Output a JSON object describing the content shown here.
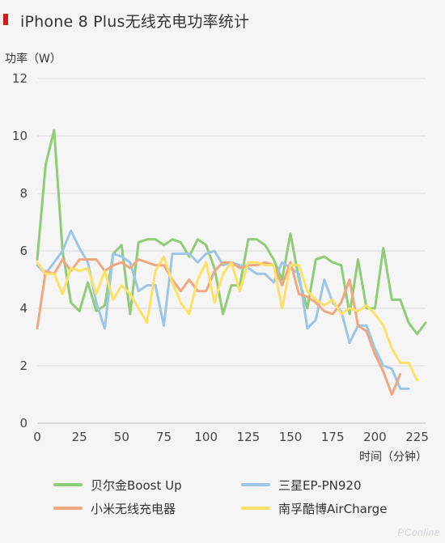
{
  "header": {
    "title": "iPhone 8 Plus无线充电功率统计"
  },
  "watermark": {
    "text": "PConline"
  },
  "colors": {
    "green": "#8fcc76",
    "blue": "#9bc6e8",
    "orange": "#f0a67f",
    "yellow": "#ffe066",
    "grid": "#d9d9d9",
    "axis_text": "#444444",
    "accent_red": "#d11b1b"
  },
  "chart_data": {
    "type": "line",
    "ylabel": "功率（W）",
    "xlabel": "时间（分钟）",
    "xlim": [
      0,
      230
    ],
    "ylim": [
      0,
      12
    ],
    "xticks": [
      0,
      25,
      50,
      75,
      100,
      125,
      150,
      175,
      200,
      225
    ],
    "yticks": [
      0,
      2,
      4,
      6,
      8,
      10,
      12
    ],
    "grid": true,
    "legend_position": "bottom",
    "series": [
      {
        "name": "贝尔金Boost Up",
        "color": "#8fcc76",
        "x": [
          0,
          5,
          10,
          15,
          20,
          25,
          30,
          35,
          40,
          45,
          50,
          55,
          60,
          65,
          70,
          75,
          80,
          85,
          90,
          95,
          100,
          105,
          110,
          115,
          120,
          125,
          130,
          135,
          140,
          145,
          150,
          155,
          160,
          165,
          170,
          175,
          180,
          185,
          190,
          195,
          200,
          205,
          210,
          215,
          220,
          225,
          230
        ],
        "y": [
          5.7,
          9.0,
          10.2,
          6.0,
          4.2,
          3.9,
          4.9,
          3.9,
          4.1,
          5.9,
          6.2,
          3.8,
          6.3,
          6.4,
          6.4,
          6.2,
          6.4,
          6.3,
          5.8,
          6.4,
          6.2,
          5.4,
          3.8,
          4.8,
          4.8,
          6.4,
          6.4,
          6.2,
          5.7,
          5.0,
          6.6,
          5.0,
          4.0,
          5.7,
          5.8,
          5.6,
          5.5,
          3.8,
          5.7,
          4.0,
          4.0,
          6.1,
          4.3,
          4.3,
          3.5,
          3.1,
          3.5
        ]
      },
      {
        "name": "三星EP-PN920",
        "color": "#9bc6e8",
        "x": [
          0,
          5,
          10,
          15,
          20,
          25,
          30,
          35,
          40,
          45,
          50,
          55,
          60,
          65,
          70,
          75,
          80,
          85,
          90,
          95,
          100,
          105,
          110,
          115,
          120,
          125,
          130,
          135,
          140,
          145,
          150,
          155,
          160,
          165,
          170,
          175,
          180,
          185,
          190,
          195,
          200,
          205,
          210,
          215,
          220
        ],
        "y": [
          5.5,
          5.2,
          5.6,
          6.0,
          6.7,
          6.1,
          5.6,
          4.2,
          3.3,
          5.9,
          5.8,
          5.6,
          4.6,
          4.8,
          4.8,
          3.4,
          5.9,
          5.9,
          5.9,
          5.6,
          5.9,
          6.0,
          5.5,
          5.6,
          5.5,
          5.4,
          5.2,
          5.2,
          4.9,
          5.6,
          5.4,
          5.2,
          3.3,
          3.6,
          5.0,
          4.2,
          3.9,
          2.8,
          3.4,
          3.4,
          2.6,
          2.0,
          1.9,
          1.2,
          1.2
        ]
      },
      {
        "name": "小米无线充电器",
        "color": "#f0a67f",
        "x": [
          0,
          5,
          10,
          15,
          20,
          25,
          30,
          35,
          40,
          45,
          50,
          55,
          60,
          65,
          70,
          75,
          80,
          85,
          90,
          95,
          100,
          105,
          110,
          115,
          120,
          125,
          130,
          135,
          140,
          145,
          150,
          155,
          160,
          165,
          170,
          175,
          180,
          185,
          190,
          195,
          200,
          205,
          210,
          215
        ],
        "y": [
          3.3,
          5.3,
          5.2,
          5.7,
          5.3,
          5.7,
          5.7,
          5.7,
          5.3,
          5.5,
          5.6,
          5.4,
          5.7,
          5.6,
          5.5,
          5.5,
          5.0,
          4.6,
          5.0,
          4.6,
          4.6,
          5.3,
          5.6,
          5.6,
          5.4,
          5.5,
          5.5,
          5.6,
          5.5,
          4.8,
          5.6,
          4.5,
          4.4,
          4.2,
          3.9,
          3.8,
          4.2,
          5.0,
          3.4,
          3.2,
          2.4,
          1.8,
          1.0,
          1.7
        ]
      },
      {
        "name": "南孚酷博AirCharge",
        "color": "#ffe066",
        "x": [
          0,
          5,
          10,
          15,
          20,
          25,
          30,
          35,
          40,
          45,
          50,
          55,
          60,
          65,
          70,
          75,
          80,
          85,
          90,
          95,
          100,
          105,
          110,
          115,
          120,
          125,
          130,
          135,
          140,
          145,
          150,
          155,
          160,
          165,
          170,
          175,
          180,
          185,
          190,
          195,
          200,
          205,
          210,
          215,
          220,
          225
        ],
        "y": [
          5.6,
          5.2,
          5.2,
          4.5,
          5.4,
          5.3,
          5.4,
          4.5,
          5.3,
          4.3,
          4.8,
          4.5,
          4.0,
          3.5,
          5.3,
          5.8,
          4.9,
          4.2,
          3.8,
          5.0,
          5.6,
          4.2,
          5.2,
          5.6,
          4.6,
          5.6,
          5.6,
          5.5,
          5.5,
          4.0,
          5.5,
          5.5,
          4.6,
          4.3,
          4.1,
          4.3,
          3.8,
          4.0,
          3.9,
          4.1,
          3.8,
          3.4,
          2.6,
          2.1,
          2.1,
          1.5
        ]
      }
    ]
  }
}
